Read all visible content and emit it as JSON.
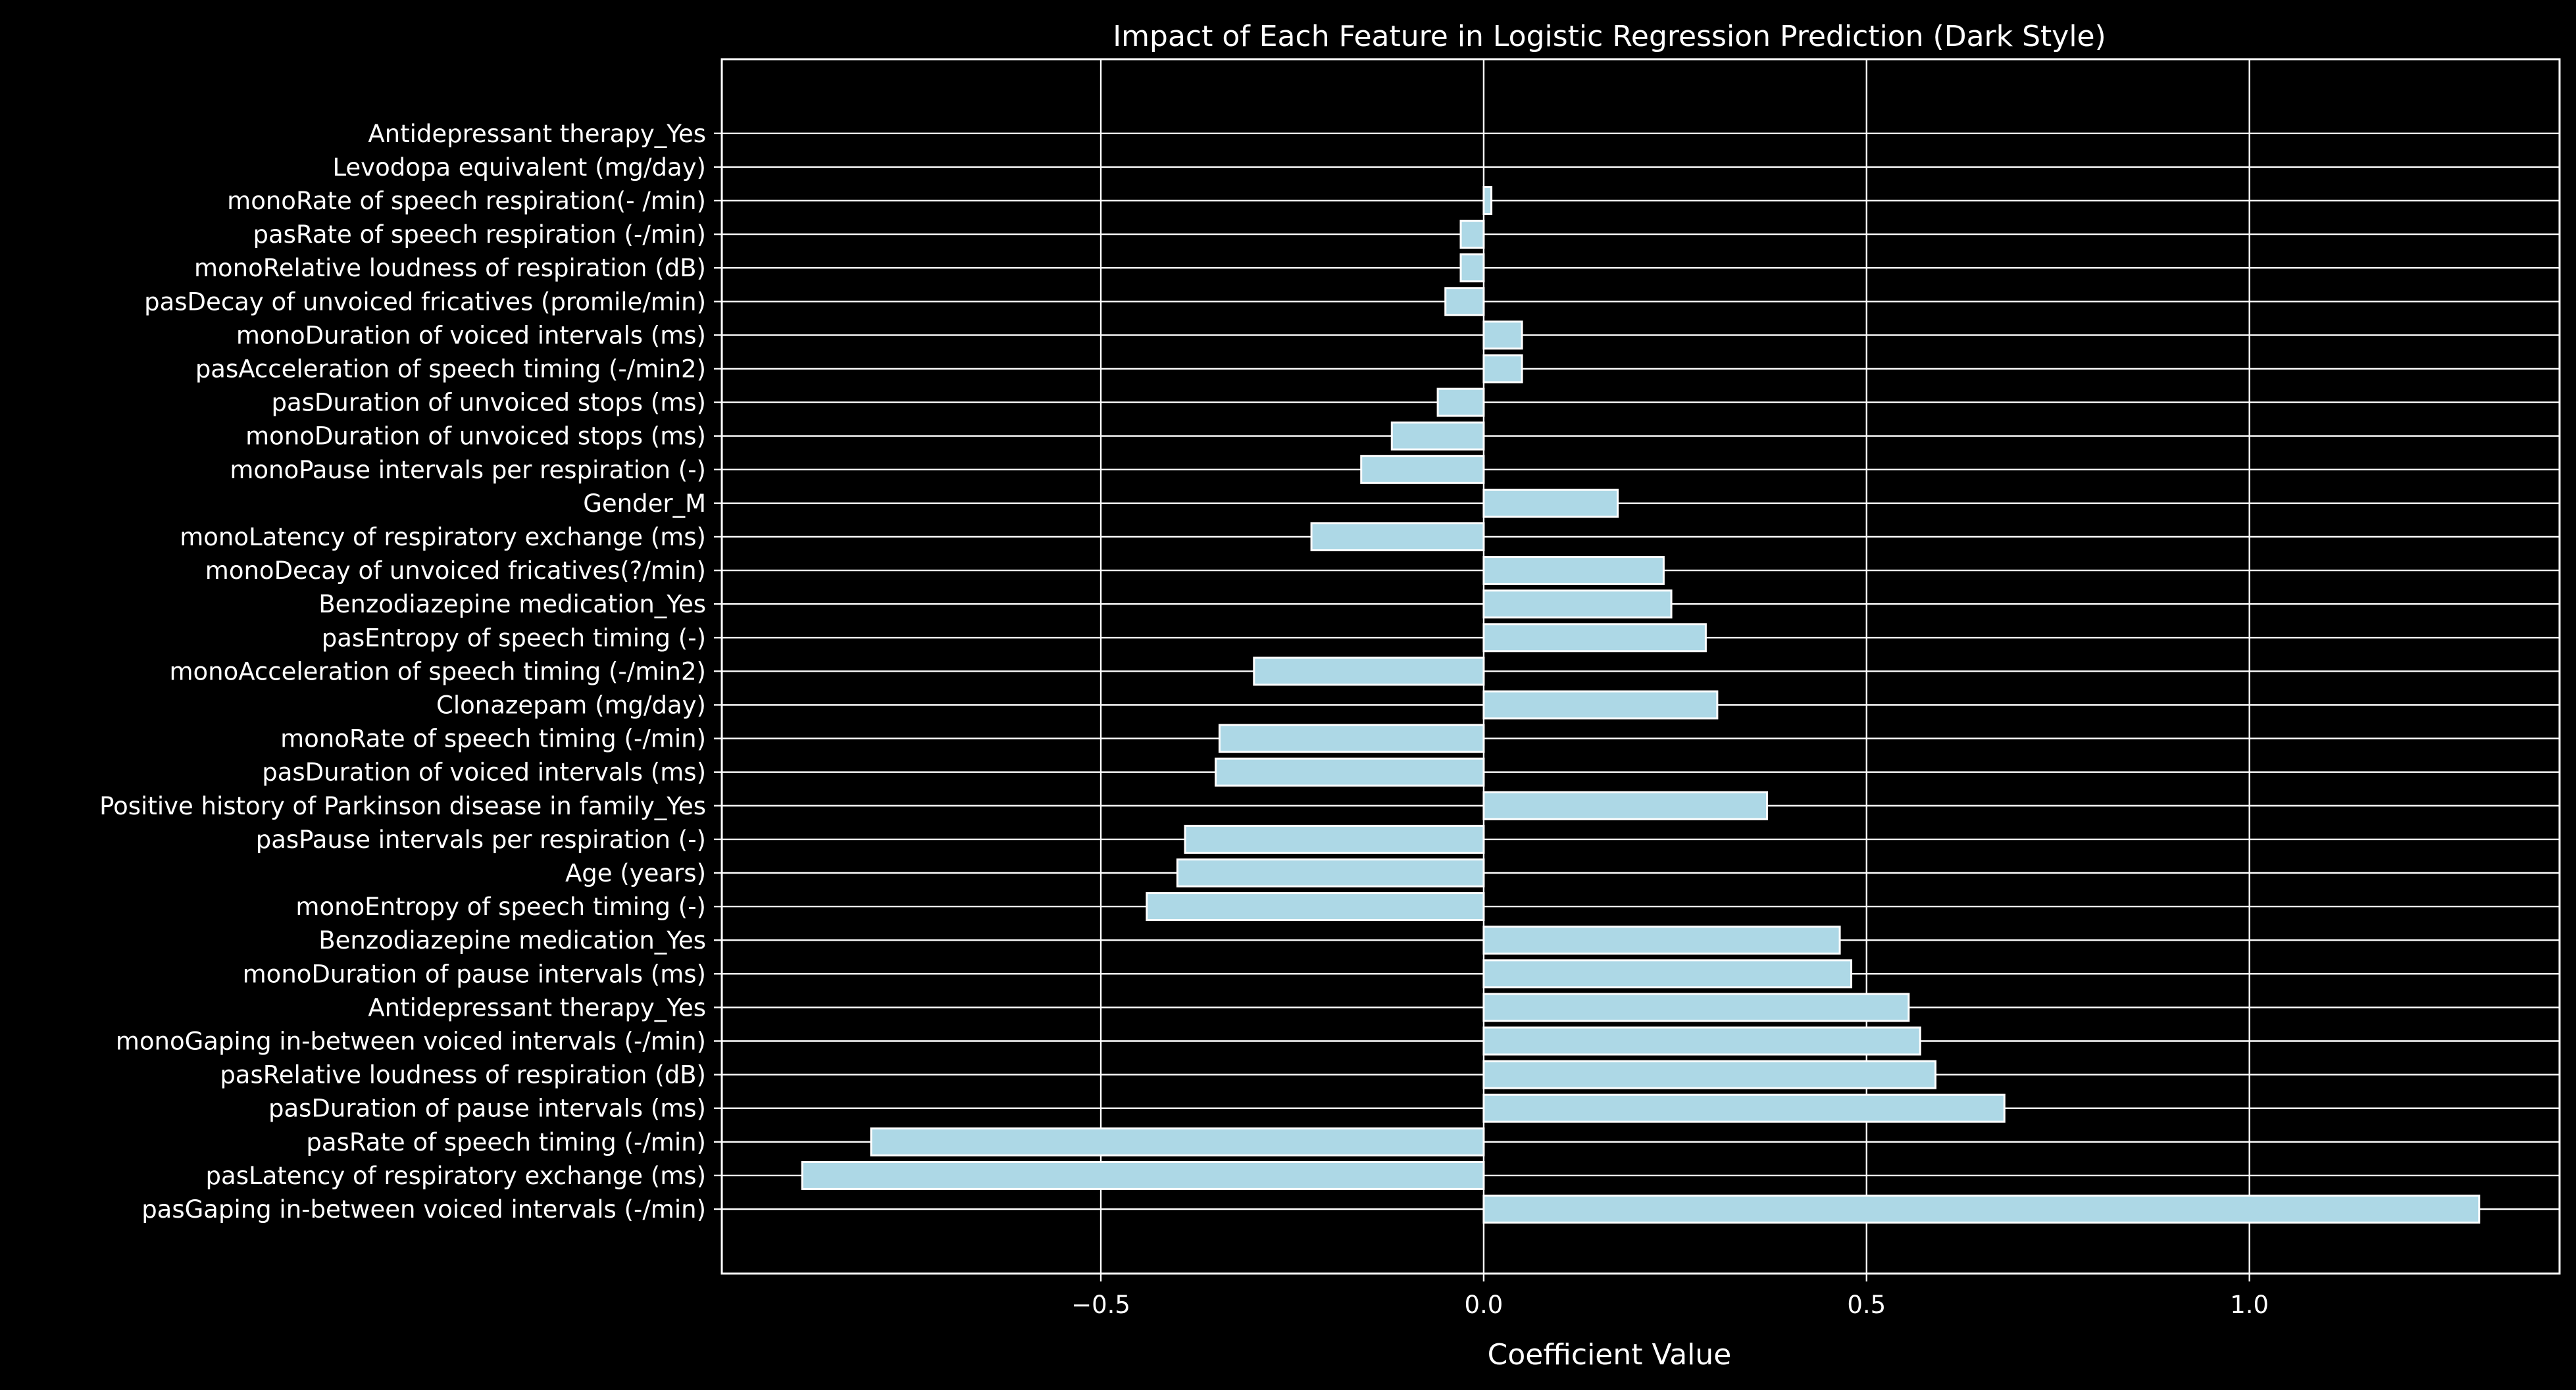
{
  "chart_data": {
    "type": "bar",
    "orientation": "horizontal",
    "title": "Impact of Each Feature in Logistic Regression Prediction (Dark Style)",
    "xlabel": "Coefficient Value",
    "ylabel": "",
    "xlim": [
      -0.995,
      1.405
    ],
    "xticks": [
      -0.5,
      0.0,
      0.5,
      1.0
    ],
    "xtick_labels": [
      "−0.5",
      "0.0",
      "0.5",
      "1.0"
    ],
    "grid": true,
    "bar_color": "#add8e6",
    "background_color": "#000000",
    "text_color": "#ffffff",
    "categories": [
      "pasGaping in-between voiced intervals (-/min)",
      "pasLatency of respiratory exchange (ms)",
      "pasRate of speech timing (-/min)",
      "pasDuration of pause intervals (ms)",
      "pasRelative loudness of respiration (dB)",
      "monoGaping in-between voiced intervals (-/min)",
      "Antidepressant therapy_Yes ",
      "monoDuration of pause intervals (ms)",
      "Benzodiazepine medication_Yes ",
      "monoEntropy of speech timing (-)",
      "Age (years)",
      "pasPause intervals per respiration (-)",
      "Positive history of Parkinson disease in family_Yes",
      "pasDuration of voiced intervals (ms)",
      "monoRate of speech timing (-/min)",
      "Clonazepam (mg/day)",
      "monoAcceleration of speech timing (-/min2)",
      "pasEntropy of speech timing (-)",
      "Benzodiazepine medication_Yes",
      "monoDecay of unvoiced fricatives(?/min)",
      "monoLatency of respiratory exchange (ms)",
      "Gender_M",
      "monoPause intervals per respiration (-)",
      "monoDuration of unvoiced stops (ms)",
      "pasDuration of unvoiced stops (ms)",
      "pasAcceleration of speech timing (-/min2)",
      "monoDuration of voiced intervals (ms)",
      "pasDecay of unvoiced fricatives (promile/min)",
      "monoRelative loudness of respiration (dB)",
      "pasRate of speech respiration (-/min)",
      "monoRate of speech respiration(- /min)",
      "Levodopa equivalent (mg/day)",
      "Antidepressant therapy_Yes"
    ],
    "values": [
      1.3,
      -0.89,
      -0.8,
      0.68,
      0.59,
      0.57,
      0.555,
      0.48,
      0.465,
      -0.44,
      -0.4,
      -0.39,
      0.37,
      -0.35,
      -0.345,
      0.305,
      -0.3,
      0.29,
      0.245,
      0.235,
      -0.225,
      0.175,
      -0.16,
      -0.12,
      -0.06,
      0.05,
      0.05,
      -0.05,
      -0.03,
      -0.03,
      0.01,
      0.0,
      0.0
    ]
  }
}
